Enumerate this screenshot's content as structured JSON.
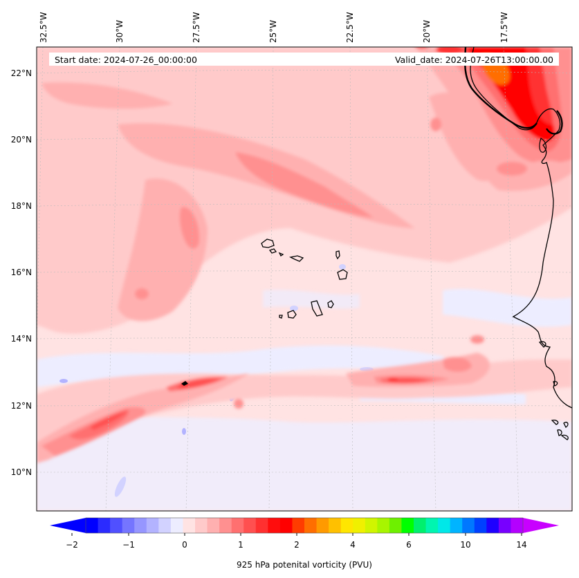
{
  "header": {
    "start_date": "Start date: 2024-07-26_00:00:00",
    "valid_date": "Valid_date: 2024-07-26T13:00:00.00"
  },
  "map": {
    "lon_labels": [
      "32.5°W",
      "30°W",
      "27.5°W",
      "25°W",
      "22.5°W",
      "20°W",
      "17.5°W"
    ],
    "lat_labels": [
      "22°N",
      "20°N",
      "18°N",
      "16°N",
      "14°N",
      "12°N",
      "10°N"
    ],
    "grid": true,
    "field": "925 hPa potential vorticity",
    "background_color": "#ffe3e3"
  },
  "colorbar": {
    "label": "925 hPa potenital vorticity (PVU)",
    "tick_labels": [
      "−2",
      "−1",
      "0",
      "1",
      "2",
      "4",
      "6",
      "10",
      "14"
    ],
    "colors": [
      "#0000ff",
      "#2b2bff",
      "#5050ff",
      "#7575ff",
      "#9696ff",
      "#b3b3ff",
      "#d2d2ff",
      "#ededff",
      "#ffe3e3",
      "#ffcaca",
      "#ffb0b0",
      "#ff9090",
      "#ff7070",
      "#ff5050",
      "#ff3030",
      "#ff0d0d",
      "#ff0000",
      "#ff3c00",
      "#ff6e00",
      "#ff9a00",
      "#ffc000",
      "#ffe600",
      "#f0f000",
      "#d0f500",
      "#a8f500",
      "#6ef000",
      "#00ff00",
      "#00f06e",
      "#00f5b0",
      "#00e8e8",
      "#00b4ff",
      "#0078ff",
      "#0040ff",
      "#1e00ff",
      "#7800ff",
      "#b400ff"
    ],
    "extend_left_color": "#0000ff",
    "extend_right_color": "#c800ff"
  }
}
